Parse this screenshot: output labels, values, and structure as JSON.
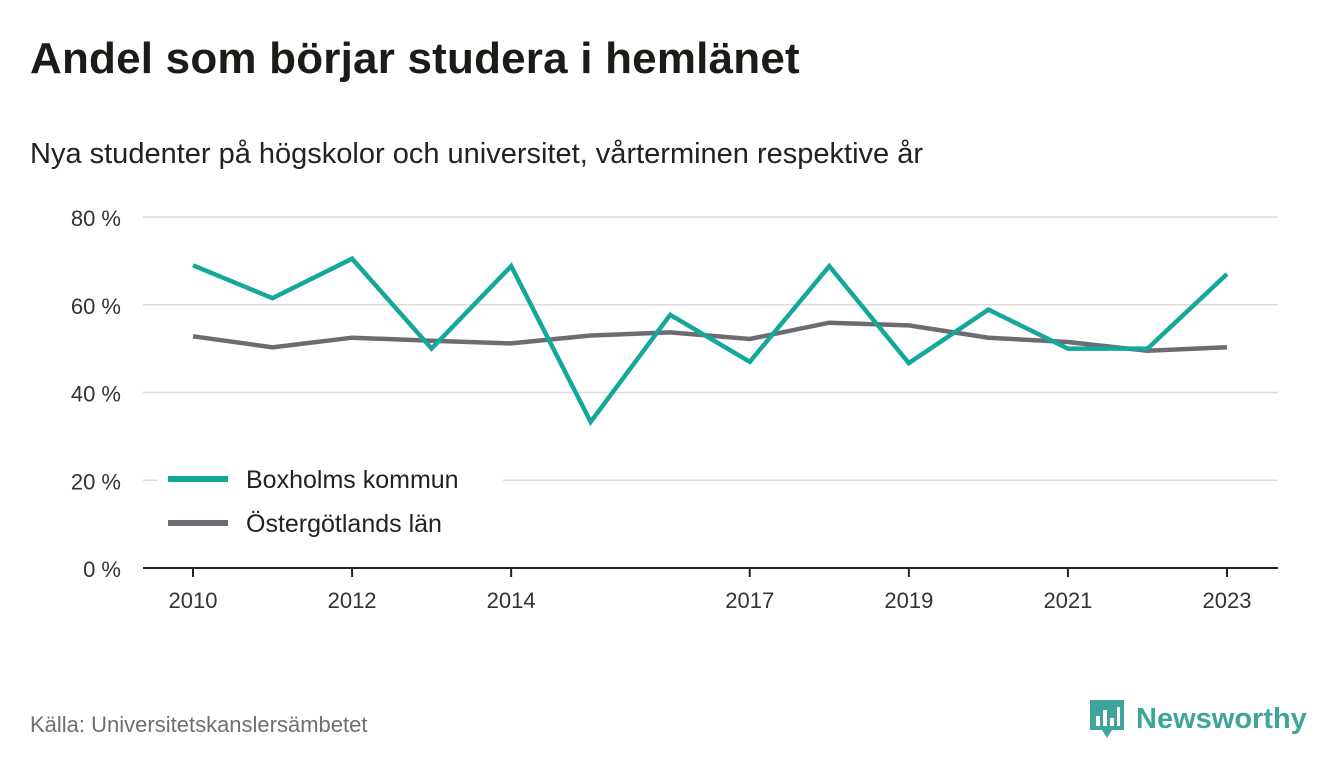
{
  "title": "Andel som börjar studera i hemlänet",
  "subtitle": "Nya studenter på högskolor och universitet, vårterminen respektive år",
  "source": "Källa: Universitetskanslersämbetet",
  "brand": {
    "name": "Newsworthy",
    "icon": "newsworthy-logo-icon",
    "color": "#3fa59c"
  },
  "chart_data": {
    "type": "line",
    "x": [
      2010,
      2011,
      2012,
      2013,
      2014,
      2015,
      2016,
      2017,
      2018,
      2019,
      2020,
      2021,
      2022,
      2023
    ],
    "x_tick_labels": [
      "2010",
      "2012",
      "2014",
      "2017",
      "2019",
      "2021",
      "2023"
    ],
    "y_tick_labels": [
      "0 %",
      "20 %",
      "40 %",
      "60 %",
      "80 %"
    ],
    "ylim": [
      0,
      80
    ],
    "grid": true,
    "legend_position": "bottom-left",
    "series": [
      {
        "name": "Boxholms kommun",
        "color": "#14a89c",
        "values": [
          69,
          61.5,
          70.5,
          50,
          68.8,
          33.3,
          57.7,
          47,
          68.8,
          46.7,
          58.9,
          50,
          50,
          67
        ]
      },
      {
        "name": "Östergötlands län",
        "color": "#6d6c72",
        "values": [
          52.8,
          50.3,
          52.5,
          51.8,
          51.2,
          53,
          53.7,
          52.2,
          55.9,
          55.3,
          52.5,
          51.5,
          49.5,
          50.3
        ]
      }
    ]
  }
}
